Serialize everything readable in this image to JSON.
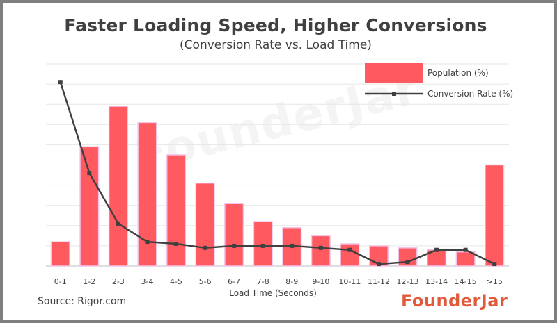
{
  "chart_data": {
    "type": "bar",
    "title": "Faster Loading Speed, Higher Conversions",
    "subtitle": "(Conversion Rate vs. Load Time)",
    "xlabel": "Load Time (Seconds)",
    "ylabel": "",
    "categories": [
      "0-1",
      "1-2",
      "2-3",
      "3-4",
      "4-5",
      "5-6",
      "6-7",
      "7-8",
      "8-9",
      "9-10",
      "10-11",
      "11-12",
      "12-13",
      "13-14",
      "14-15",
      ">15"
    ],
    "ylim": [
      0,
      100
    ],
    "grid": true,
    "legend": "top-right",
    "series": [
      {
        "name": "Population (%)",
        "type": "bar",
        "color": "#ff5a5f",
        "values": [
          12,
          59,
          79,
          71,
          55,
          41,
          31,
          22,
          19,
          15,
          11,
          10,
          9,
          8,
          7,
          50
        ]
      },
      {
        "name": "Conversion Rate (%)",
        "type": "line",
        "color": "#404040",
        "values": [
          91,
          46,
          21,
          12,
          11,
          9,
          10,
          10,
          10,
          9,
          8,
          1,
          2,
          8,
          8,
          1
        ]
      }
    ]
  },
  "footer": {
    "source": "Source: Rigor.com",
    "brand": "FounderJar"
  }
}
